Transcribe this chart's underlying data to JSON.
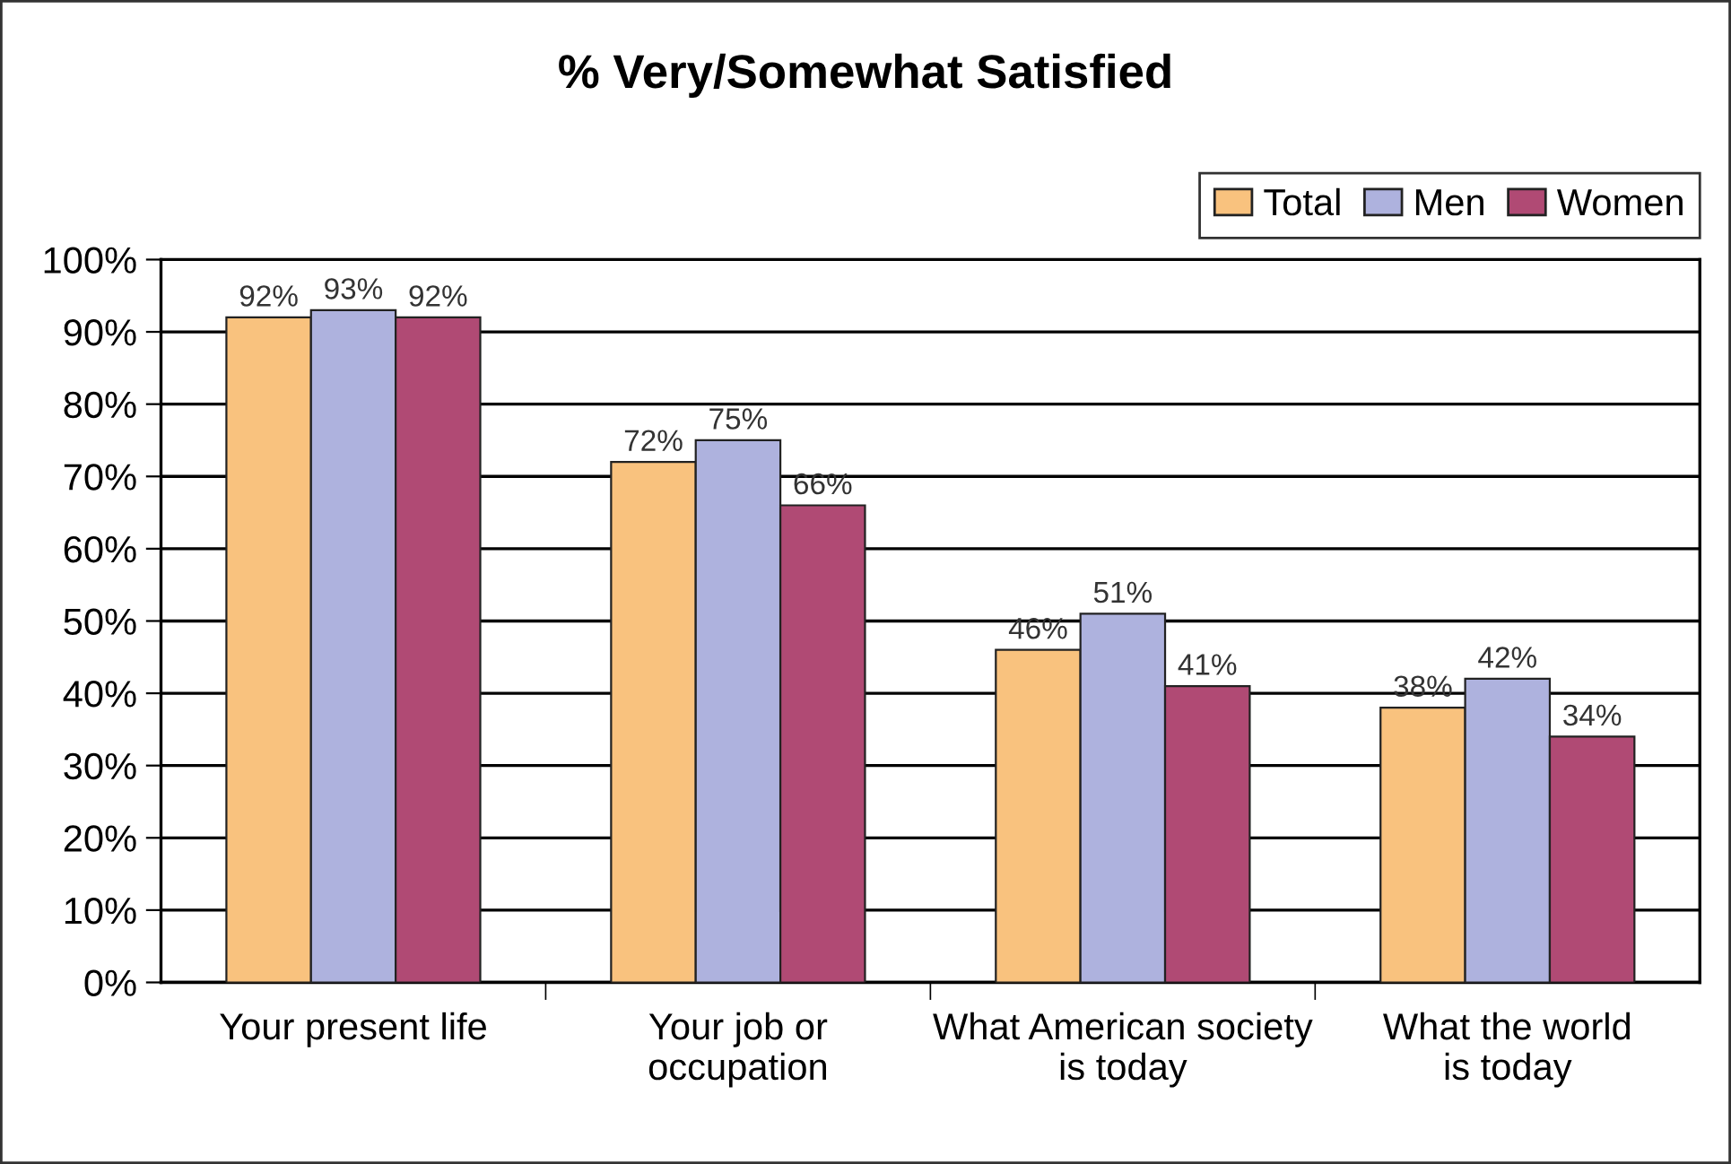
{
  "chart_data": {
    "type": "bar",
    "title": "% Very/Somewhat Satisfied",
    "categories": [
      "Your present life",
      "Your job or\noccupation",
      "What American society\nis today",
      "What the world\nis today"
    ],
    "series": [
      {
        "name": "Total",
        "color": "#f9c27e",
        "values": [
          92,
          72,
          46,
          38
        ],
        "value_labels": [
          "92%",
          "72%",
          "46%",
          "38%"
        ]
      },
      {
        "name": "Men",
        "color": "#aeb2de",
        "values": [
          93,
          75,
          51,
          42
        ],
        "value_labels": [
          "93%",
          "75%",
          "51%",
          "42%"
        ]
      },
      {
        "name": "Women",
        "color": "#b04a74",
        "values": [
          92,
          66,
          41,
          34
        ],
        "value_labels": [
          "92%",
          "66%",
          "41%",
          "34%"
        ]
      }
    ],
    "ylim": [
      0,
      100
    ],
    "yticks": [
      {
        "value": 0,
        "label": "0%"
      },
      {
        "value": 10,
        "label": "10%"
      },
      {
        "value": 20,
        "label": "20%"
      },
      {
        "value": 30,
        "label": "30%"
      },
      {
        "value": 40,
        "label": "40%"
      },
      {
        "value": 50,
        "label": "50%"
      },
      {
        "value": 60,
        "label": "60%"
      },
      {
        "value": 70,
        "label": "70%"
      },
      {
        "value": 80,
        "label": "80%"
      },
      {
        "value": 90,
        "label": "90%"
      },
      {
        "value": 100,
        "label": "100%"
      }
    ],
    "grid": "y",
    "legend": "top right"
  }
}
